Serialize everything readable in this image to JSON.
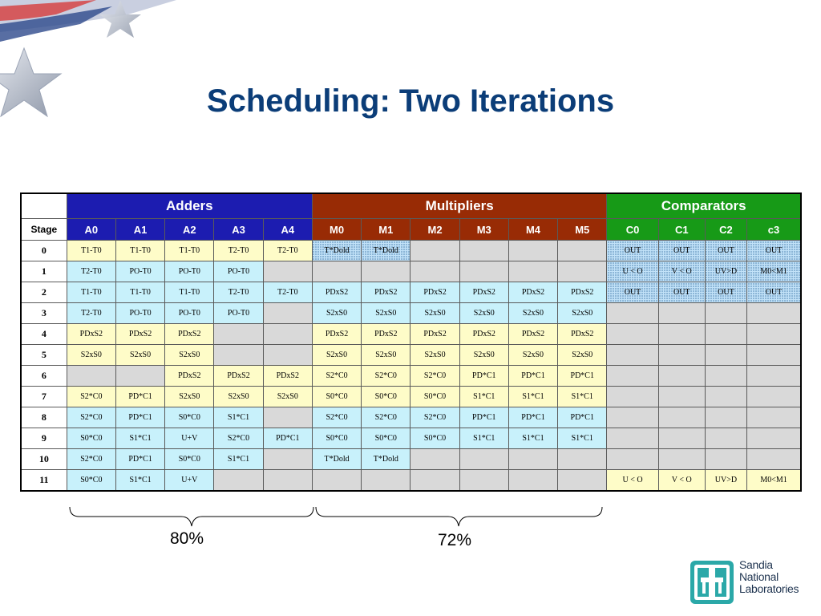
{
  "title": "Scheduling: Two Iterations",
  "groups": {
    "adders": "Adders",
    "multipliers": "Multipliers",
    "comparators": "Comparators"
  },
  "columns": {
    "stage": "Stage",
    "adders": [
      "A0",
      "A1",
      "A2",
      "A3",
      "A4"
    ],
    "multipliers": [
      "M0",
      "M1",
      "M2",
      "M3",
      "M4",
      "M5"
    ],
    "comparators": [
      "C0",
      "C1",
      "C2",
      "c3"
    ]
  },
  "rows": [
    {
      "stage": "0",
      "cells": [
        "T1-T0",
        "T1-T0",
        "T1-T0",
        "T2-T0",
        "T2-T0",
        "T*Dold",
        "T*Dold",
        "",
        "",
        "",
        "",
        "OUT",
        "OUT",
        "OUT",
        "OUT"
      ]
    },
    {
      "stage": "1",
      "cells": [
        "T2-T0",
        "PO-T0",
        "PO-T0",
        "PO-T0",
        "",
        "",
        "",
        "",
        "",
        "",
        "",
        "U < O",
        "V < O",
        "UV>D",
        "M0<M1"
      ]
    },
    {
      "stage": "2",
      "cells": [
        "T1-T0",
        "T1-T0",
        "T1-T0",
        "T2-T0",
        "T2-T0",
        "PDxS2",
        "PDxS2",
        "PDxS2",
        "PDxS2",
        "PDxS2",
        "PDxS2",
        "OUT",
        "OUT",
        "OUT",
        "OUT"
      ]
    },
    {
      "stage": "3",
      "cells": [
        "T2-T0",
        "PO-T0",
        "PO-T0",
        "PO-T0",
        "",
        "S2xS0",
        "S2xS0",
        "S2xS0",
        "S2xS0",
        "S2xS0",
        "S2xS0",
        "",
        "",
        "",
        ""
      ]
    },
    {
      "stage": "4",
      "cells": [
        "PDxS2",
        "PDxS2",
        "PDxS2",
        "",
        "",
        "PDxS2",
        "PDxS2",
        "PDxS2",
        "PDxS2",
        "PDxS2",
        "PDxS2",
        "",
        "",
        "",
        ""
      ]
    },
    {
      "stage": "5",
      "cells": [
        "S2xS0",
        "S2xS0",
        "S2xS0",
        "",
        "",
        "S2xS0",
        "S2xS0",
        "S2xS0",
        "S2xS0",
        "S2xS0",
        "S2xS0",
        "",
        "",
        "",
        ""
      ]
    },
    {
      "stage": "6",
      "cells": [
        "",
        "",
        "PDxS2",
        "PDxS2",
        "PDxS2",
        "S2*C0",
        "S2*C0",
        "S2*C0",
        "PD*C1",
        "PD*C1",
        "PD*C1",
        "",
        "",
        "",
        ""
      ]
    },
    {
      "stage": "7",
      "cells": [
        "S2*C0",
        "PD*C1",
        "S2xS0",
        "S2xS0",
        "S2xS0",
        "S0*C0",
        "S0*C0",
        "S0*C0",
        "S1*C1",
        "S1*C1",
        "S1*C1",
        "",
        "",
        "",
        ""
      ]
    },
    {
      "stage": "8",
      "cells": [
        "S2*C0",
        "PD*C1",
        "S0*C0",
        "S1*C1",
        "",
        "S2*C0",
        "S2*C0",
        "S2*C0",
        "PD*C1",
        "PD*C1",
        "PD*C1",
        "",
        "",
        "",
        ""
      ]
    },
    {
      "stage": "9",
      "cells": [
        "S0*C0",
        "S1*C1",
        "U+V",
        "S2*C0",
        "PD*C1",
        "S0*C0",
        "S0*C0",
        "S0*C0",
        "S1*C1",
        "S1*C1",
        "S1*C1",
        "",
        "",
        "",
        ""
      ]
    },
    {
      "stage": "10",
      "cells": [
        "S2*C0",
        "PD*C1",
        "S0*C0",
        "S1*C1",
        "",
        "T*Dold",
        "T*Dold",
        "",
        "",
        "",
        "",
        "",
        "",
        "",
        ""
      ]
    },
    {
      "stage": "11",
      "cells": [
        "S0*C0",
        "S1*C1",
        "U+V",
        "",
        "",
        "",
        "",
        "",
        "",
        "",
        "",
        "U < O",
        "V < O",
        "UV>D",
        "M0<M1"
      ]
    }
  ],
  "cell_styles": [
    "yyyyyhheeeehhhh",
    "cccceeeeeeehhhh",
    "ccccccccccchhhh",
    "ccccecccccceeee",
    "yyyeeyyyyyyeeee",
    "yyyeeyyyyyyeeee",
    "eeyyyyyyyyyeeee",
    "yyyyyyyyyyyeeee",
    "ccccecccccceeee",
    "ccccccccccceeee",
    "ccccecceeeeeeee",
    "ccceeeeeeeeyyyy"
  ],
  "utilization": {
    "adders": "80%",
    "multipliers": "72%"
  },
  "logo": {
    "line1": "Sandia",
    "line2": "National",
    "line3": "Laboratories"
  },
  "colors": {
    "title": "#0b3d78",
    "adders_header": "#1c1cb0",
    "multipliers_header": "#982b05",
    "comparators_header": "#179a17",
    "cell_yellow": "#fefcc8",
    "cell_cyan": "#c8f1fb",
    "cell_empty": "#d9d9d9"
  }
}
